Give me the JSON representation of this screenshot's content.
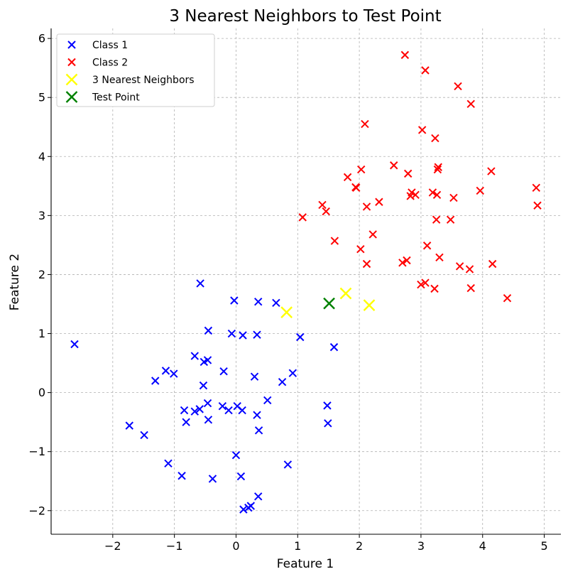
{
  "chart_data": {
    "type": "scatter",
    "title": "3 Nearest Neighbors to Test Point",
    "xlabel": "Feature 1",
    "ylabel": "Feature 2",
    "xlim": [
      -3.0,
      5.27
    ],
    "ylim": [
      -2.4,
      6.17
    ],
    "xticks": [
      -2,
      -1,
      0,
      1,
      2,
      3,
      4,
      5
    ],
    "yticks": [
      -2,
      -1,
      0,
      1,
      2,
      3,
      4,
      5,
      6
    ],
    "grid": true,
    "legend_position": "top-left",
    "marker": "x",
    "series": [
      {
        "name": "Class 1",
        "color": "#0000ff",
        "points": [
          [
            -2.62,
            0.82
          ],
          [
            -0.58,
            1.85
          ],
          [
            -0.03,
            1.56
          ],
          [
            0.36,
            1.54
          ],
          [
            0.65,
            1.52
          ],
          [
            -0.45,
            1.05
          ],
          [
            -0.07,
            1.0
          ],
          [
            0.11,
            0.97
          ],
          [
            0.34,
            0.98
          ],
          [
            1.04,
            0.94
          ],
          [
            1.59,
            0.77
          ],
          [
            -0.67,
            0.62
          ],
          [
            -0.52,
            0.52
          ],
          [
            -0.46,
            0.55
          ],
          [
            -1.14,
            0.37
          ],
          [
            -1.01,
            0.32
          ],
          [
            -0.2,
            0.36
          ],
          [
            0.3,
            0.27
          ],
          [
            0.92,
            0.33
          ],
          [
            -1.31,
            0.2
          ],
          [
            0.75,
            0.18
          ],
          [
            -0.53,
            0.12
          ],
          [
            0.51,
            -0.13
          ],
          [
            -0.46,
            -0.18
          ],
          [
            -0.22,
            -0.23
          ],
          [
            0.02,
            -0.23
          ],
          [
            -0.84,
            -0.3
          ],
          [
            -0.67,
            -0.32
          ],
          [
            -0.59,
            -0.28
          ],
          [
            -0.12,
            -0.3
          ],
          [
            0.1,
            -0.3
          ],
          [
            1.48,
            -0.22
          ],
          [
            0.34,
            -0.38
          ],
          [
            -0.81,
            -0.5
          ],
          [
            -0.45,
            -0.46
          ],
          [
            1.49,
            -0.52
          ],
          [
            -1.73,
            -0.56
          ],
          [
            -1.49,
            -0.72
          ],
          [
            0.37,
            -0.64
          ],
          [
            0.0,
            -1.06
          ],
          [
            -1.1,
            -1.2
          ],
          [
            0.84,
            -1.22
          ],
          [
            -0.88,
            -1.41
          ],
          [
            0.08,
            -1.42
          ],
          [
            -0.38,
            -1.46
          ],
          [
            0.36,
            -1.76
          ],
          [
            0.24,
            -1.92
          ],
          [
            0.2,
            -1.95
          ],
          [
            0.12,
            -1.98
          ]
        ]
      },
      {
        "name": "Class 2",
        "color": "#ff0000",
        "points": [
          [
            2.74,
            5.72
          ],
          [
            3.07,
            5.46
          ],
          [
            3.6,
            5.19
          ],
          [
            3.81,
            4.89
          ],
          [
            2.09,
            4.55
          ],
          [
            3.02,
            4.45
          ],
          [
            3.23,
            4.31
          ],
          [
            2.56,
            3.85
          ],
          [
            3.28,
            3.82
          ],
          [
            3.27,
            3.78
          ],
          [
            2.03,
            3.78
          ],
          [
            4.14,
            3.75
          ],
          [
            2.79,
            3.71
          ],
          [
            1.81,
            3.65
          ],
          [
            1.94,
            3.48
          ],
          [
            1.95,
            3.47
          ],
          [
            4.87,
            3.47
          ],
          [
            3.96,
            3.42
          ],
          [
            2.85,
            3.39
          ],
          [
            3.19,
            3.39
          ],
          [
            2.83,
            3.33
          ],
          [
            2.91,
            3.35
          ],
          [
            3.26,
            3.35
          ],
          [
            3.53,
            3.3
          ],
          [
            2.32,
            3.23
          ],
          [
            4.89,
            3.17
          ],
          [
            1.4,
            3.18
          ],
          [
            2.12,
            3.15
          ],
          [
            1.46,
            3.07
          ],
          [
            1.08,
            2.97
          ],
          [
            3.25,
            2.93
          ],
          [
            3.48,
            2.93
          ],
          [
            2.22,
            2.68
          ],
          [
            1.6,
            2.57
          ],
          [
            3.1,
            2.49
          ],
          [
            2.02,
            2.43
          ],
          [
            3.3,
            2.29
          ],
          [
            2.77,
            2.24
          ],
          [
            2.7,
            2.2
          ],
          [
            2.12,
            2.18
          ],
          [
            4.16,
            2.18
          ],
          [
            3.63,
            2.14
          ],
          [
            3.79,
            2.09
          ],
          [
            3.0,
            1.83
          ],
          [
            3.07,
            1.86
          ],
          [
            3.22,
            1.76
          ],
          [
            3.81,
            1.77
          ],
          [
            4.4,
            1.6
          ]
        ]
      },
      {
        "name": "3 Nearest Neighbors",
        "color": "#ffff00",
        "points": [
          [
            0.82,
            1.36
          ],
          [
            1.78,
            1.68
          ],
          [
            2.16,
            1.48
          ]
        ]
      },
      {
        "name": "Test Point",
        "color": "#008000",
        "points": [
          [
            1.51,
            1.51
          ]
        ]
      }
    ]
  }
}
